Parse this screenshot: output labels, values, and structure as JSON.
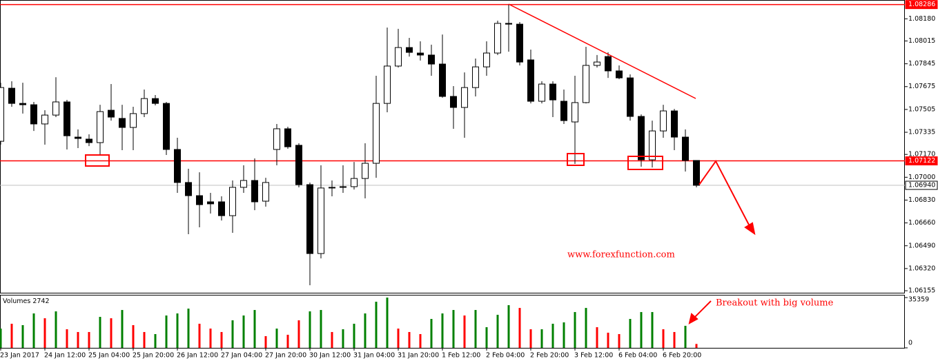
{
  "chart_data": {
    "type": "candlestick",
    "categories": [
      "23 Jan 2017",
      null,
      null,
      null,
      "24 Jan 12:00",
      null,
      null,
      null,
      "25 Jan 04:00",
      null,
      null,
      null,
      "25 Jan 20:00",
      null,
      null,
      null,
      "26 Jan 12:00",
      null,
      null,
      null,
      "27 Jan 04:00",
      null,
      null,
      null,
      "27 Jan 20:00",
      null,
      null,
      null,
      "30 Jan 12:00",
      null,
      null,
      null,
      "31 Jan 04:00",
      null,
      null,
      null,
      "31 Jan 20:00",
      null,
      null,
      null,
      "1 Feb 12:00",
      null,
      null,
      null,
      "2 Feb 04:00",
      null,
      null,
      null,
      "2 Feb 20:00",
      null,
      null,
      null,
      "3 Feb 12:00",
      null,
      null,
      null,
      "6 Feb 04:00",
      null,
      null,
      null,
      "6 Feb 20:00",
      null,
      null,
      null
    ],
    "open": [
      1.07268,
      1.07663,
      1.0755,
      1.0754,
      1.07397,
      1.07463,
      1.07561,
      1.07299,
      1.07284,
      1.07258,
      1.07499,
      1.07438,
      1.07371,
      1.07474,
      1.07586,
      1.0755,
      1.07207,
      1.06961,
      1.06863,
      1.06817,
      1.06817,
      1.06714,
      1.06925,
      1.06976,
      1.06822,
      1.07207,
      1.07361,
      1.07238,
      1.06945,
      1.06432,
      1.06925,
      1.06925,
      1.0693,
      1.06991,
      1.07104,
      1.0755,
      1.07828,
      1.07966,
      1.07925,
      1.0791,
      1.07843,
      1.07602,
      1.0752,
      1.07668,
      1.07822,
      1.07925,
      1.08146,
      1.0814,
      1.07874,
      1.07566,
      1.07694,
      1.07566,
      1.07412,
      1.07556,
      1.07833,
      1.07899,
      1.07792,
      1.0774,
      1.07453,
      1.0713,
      1.07345,
      1.07494,
      1.07299,
      1.07125
    ],
    "high": [
      1.07704,
      1.07715,
      1.07704,
      1.07561,
      1.07499,
      1.07745,
      1.07576,
      1.07356,
      1.0732,
      1.0754,
      1.07694,
      1.0754,
      1.07525,
      1.07653,
      1.07612,
      1.07561,
      1.07294,
      1.07063,
      1.07037,
      1.06884,
      1.06858,
      1.06976,
      1.07089,
      1.0714,
      1.06996,
      1.07397,
      1.07376,
      1.07253,
      1.06961,
      1.07089,
      1.06976,
      1.07089,
      1.07114,
      1.07253,
      1.07756,
      1.08115,
      1.08105,
      1.08038,
      1.08012,
      1.07987,
      1.08063,
      1.07679,
      1.07781,
      1.07884,
      1.08012,
      1.08166,
      1.08286,
      1.08156,
      1.07951,
      1.07715,
      1.07715,
      1.07653,
      1.07756,
      1.07971,
      1.0791,
      1.0793,
      1.07833,
      1.07766,
      1.07468,
      1.07422,
      1.0754,
      1.07509,
      1.07356,
      1.07125
    ],
    "low": [
      1.07243,
      1.07525,
      1.07474,
      1.07345,
      1.07243,
      1.07448,
      1.07207,
      1.07217,
      1.07232,
      1.07166,
      1.07422,
      1.07202,
      1.07202,
      1.07448,
      1.07535,
      1.07166,
      1.06884,
      1.06576,
      1.06627,
      1.0673,
      1.06678,
      1.06586,
      1.06884,
      1.06755,
      1.06781,
      1.07089,
      1.07212,
      1.06925,
      1.06196,
      1.06396,
      1.06858,
      1.06884,
      1.06909,
      1.06843,
      1.06996,
      1.07484,
      1.07817,
      1.07899,
      1.07869,
      1.07756,
      1.07592,
      1.07361,
      1.07294,
      1.07602,
      1.07756,
      1.0791,
      1.07935,
      1.07833,
      1.0755,
      1.0755,
      1.07448,
      1.07397,
      1.07099,
      1.0755,
      1.07817,
      1.0774,
      1.0773,
      1.07422,
      1.07079,
      1.07073,
      1.07294,
      1.07202,
      1.07043,
      1.06925
    ],
    "close": [
      1.07668,
      1.0755,
      1.0754,
      1.07397,
      1.07463,
      1.07561,
      1.07309,
      1.07289,
      1.07258,
      1.07489,
      1.07448,
      1.07371,
      1.07474,
      1.07586,
      1.0755,
      1.07207,
      1.06961,
      1.06863,
      1.06796,
      1.06802,
      1.06714,
      1.06925,
      1.06976,
      1.06817,
      1.06961,
      1.07361,
      1.07227,
      1.06945,
      1.06432,
      1.0692,
      1.0692,
      1.0693,
      1.06991,
      1.07104,
      1.0755,
      1.07828,
      1.07966,
      1.0793,
      1.0791,
      1.07843,
      1.07602,
      1.0752,
      1.07668,
      1.07822,
      1.07925,
      1.08146,
      1.0814,
      1.07858,
      1.07566,
      1.07694,
      1.07576,
      1.07422,
      1.07556,
      1.07833,
      1.07858,
      1.07792,
      1.0774,
      1.07453,
      1.0713,
      1.07345,
      1.07494,
      1.07299,
      1.07125,
      1.0694
    ],
    "up_color": "#ffffff",
    "down_color": "#000000",
    "ylim": [
      1.0614,
      1.0832
    ],
    "yticks": [
      {
        "value": 1.0818,
        "label": "1.08180"
      },
      1.08015,
      1.07845,
      1.07675,
      1.07505,
      1.07335,
      {
        "value": 1.0717,
        "label": "1.07170"
      },
      {
        "value": 1.07,
        "label": "1.07000"
      },
      {
        "value": 1.0683,
        "label": "1.06830"
      },
      {
        "value": 1.0666,
        "label": "1.06660"
      },
      {
        "value": 1.0649,
        "label": "1.06490"
      },
      {
        "value": 1.0632,
        "label": "1.06320"
      },
      1.06155
    ],
    "levels": [
      {
        "value": 1.08286,
        "label": "1.08286",
        "color": "#ff0000",
        "text_color": "#ffffff"
      },
      {
        "value": 1.07122,
        "label": "1.07122",
        "color": "#ff0000",
        "text_color": "#ffffff"
      },
      {
        "value": 1.0694,
        "label": "1.06940",
        "color": "#c0c0c0",
        "text_color": "#000000"
      }
    ],
    "volume": {
      "label": "Volumes",
      "values": [
        13550,
        16940,
        15970,
        24200,
        20810,
        25650,
        13070,
        11130,
        11130,
        21780,
        20810,
        26620,
        15970,
        11130,
        9680,
        22750,
        24200,
        27590,
        16940,
        13550,
        11130,
        19360,
        22750,
        26620,
        8230,
        13550,
        9200,
        19360,
        25650,
        26620,
        11130,
        13070,
        16940,
        24200,
        32430,
        35359,
        13550,
        11130,
        9680,
        20330,
        24200,
        26620,
        22750,
        26620,
        14520,
        23230,
        30010,
        28070,
        13070,
        13070,
        16940,
        17910,
        25170,
        28070,
        14520,
        10650,
        9680,
        20330,
        25170,
        25170,
        13070,
        11130,
        15490,
        2742
      ],
      "colors": [
        "green",
        "red",
        "green",
        "green",
        "red",
        "green",
        "red",
        "red",
        "red",
        "green",
        "red",
        "green",
        "red",
        "red",
        "green",
        "green",
        "green",
        "green",
        "red",
        "red",
        "red",
        "green",
        "green",
        "green",
        "red",
        "green",
        "red",
        "red",
        "green",
        "green",
        "red",
        "green",
        "green",
        "green",
        "green",
        "green",
        "red",
        "red",
        "red",
        "green",
        "green",
        "green",
        "red",
        "green",
        "green",
        "green",
        "green",
        "red",
        "red",
        "green",
        "green",
        "green",
        "green",
        "green",
        "red",
        "red",
        "red",
        "green",
        "green",
        "green",
        "red",
        "red",
        "green",
        "red"
      ],
      "ylim": [
        0,
        35359
      ],
      "yticks": [
        0,
        35359
      ]
    },
    "watermark": "www.forexfunction.com",
    "annotation": "Breakout with big volume"
  }
}
